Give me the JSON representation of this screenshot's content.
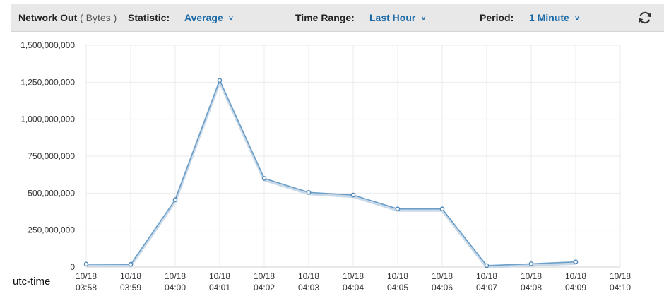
{
  "toolbar": {
    "metric": "Network Out",
    "unit": "( Bytes )",
    "statistic_label": "Statistic:",
    "statistic_value": "Average",
    "time_range_label": "Time Range:",
    "time_range_value": "Last Hour",
    "period_label": "Period:",
    "period_value": "1 Minute",
    "refresh_icon": "refresh-icon"
  },
  "utc_label": "utc-time",
  "colors": {
    "line": "#6b9fc9",
    "accent": "#1a6aa8",
    "grid": "#ebebeb"
  },
  "chart_data": {
    "type": "line",
    "grid": true,
    "ylim": [
      0,
      1500000000
    ],
    "yticks": [
      0,
      250000000,
      500000000,
      750000000,
      1000000000,
      1250000000,
      1500000000
    ],
    "ytick_labels": [
      "0",
      "250,000,000",
      "500,000,000",
      "750,000,000",
      "1,000,000,000",
      "1,250,000,000",
      "1,500,000,000"
    ],
    "categories": [
      [
        "10/18",
        "03:58"
      ],
      [
        "10/18",
        "03:59"
      ],
      [
        "10/18",
        "04:00"
      ],
      [
        "10/18",
        "04:01"
      ],
      [
        "10/18",
        "04:02"
      ],
      [
        "10/18",
        "04:03"
      ],
      [
        "10/18",
        "04:04"
      ],
      [
        "10/18",
        "04:05"
      ],
      [
        "10/18",
        "04:06"
      ],
      [
        "10/18",
        "04:07"
      ],
      [
        "10/18",
        "04:08"
      ],
      [
        "10/18",
        "04:09"
      ],
      [
        "10/18",
        "04:10"
      ]
    ],
    "series": [
      {
        "values": [
          20000000,
          18000000,
          455000000,
          1262000000,
          600000000,
          505000000,
          487000000,
          393000000,
          393000000,
          10000000,
          22000000,
          35000000,
          null
        ]
      }
    ]
  }
}
